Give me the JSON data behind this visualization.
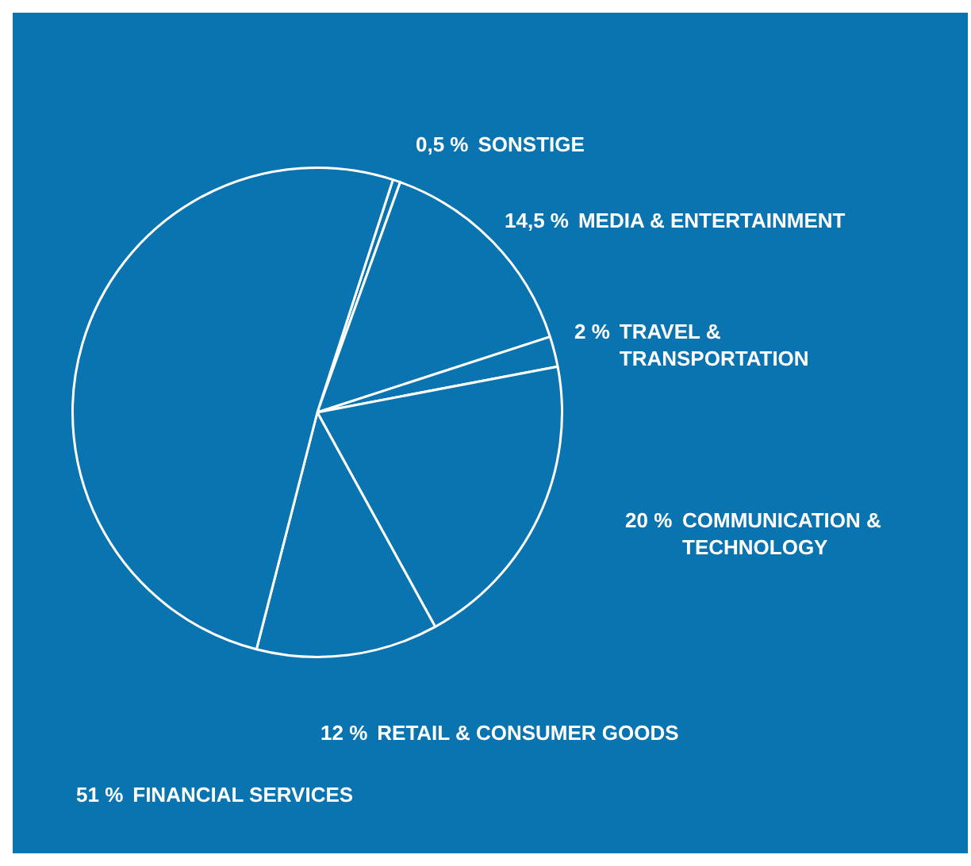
{
  "chart_data": {
    "type": "pie",
    "categories": [
      "SONSTIGE",
      "MEDIA & ENTERTAINMENT",
      "TRAVEL & TRANSPORTATION",
      "COMMUNICATION & TECHNOLOGY",
      "RETAIL & CONSUMER GOODS",
      "FINANCIAL SERVICES"
    ],
    "values": [
      0.5,
      14.5,
      2,
      20,
      12,
      51
    ],
    "value_labels": [
      "0,5 %",
      "14,5 %",
      "2 %",
      "20 %",
      "12 %",
      "51 %"
    ],
    "colors": [
      "#0a74b1",
      "#0a74b1",
      "#0a74b1",
      "#0a74b1",
      "#0a74b1",
      "#0a74b1"
    ],
    "legend": false
  }
}
